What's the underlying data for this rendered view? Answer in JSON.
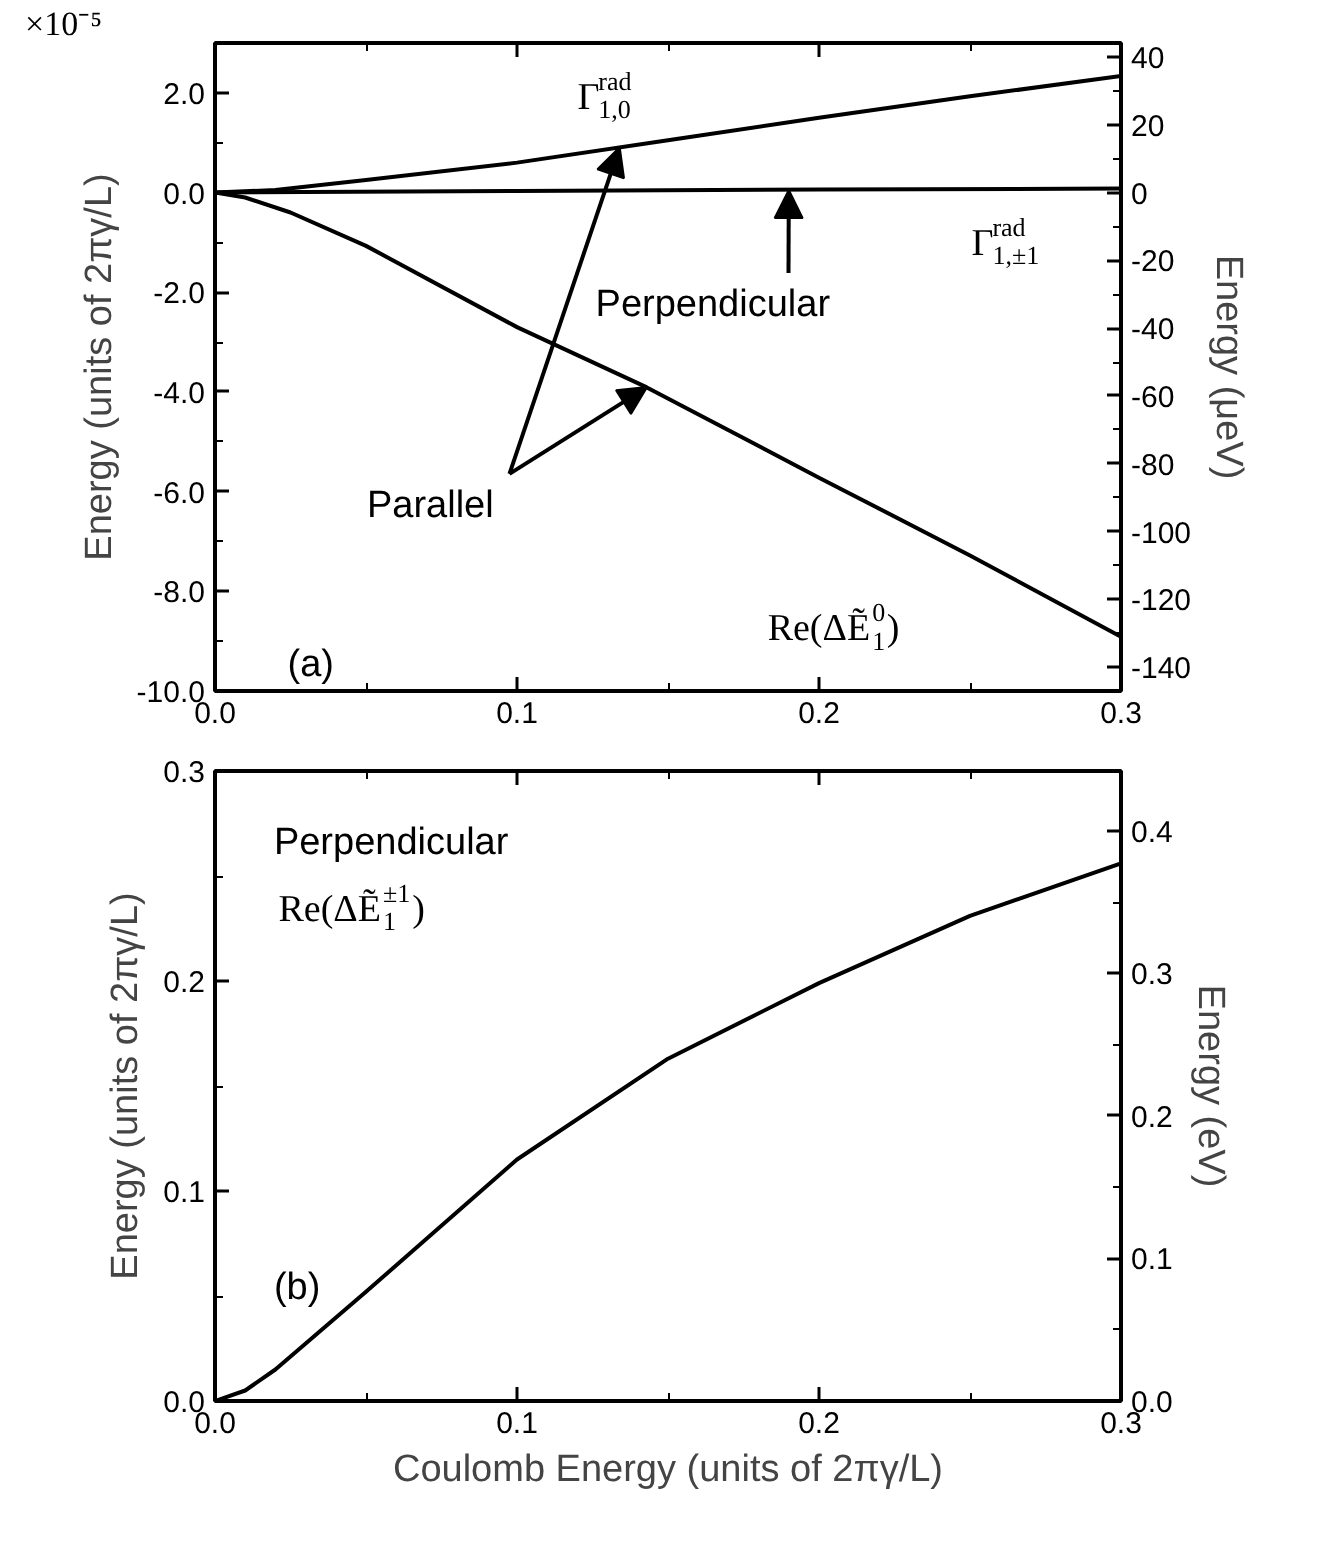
{
  "chart_data": [
    {
      "type": "line",
      "xlim": [
        0,
        0.3
      ],
      "ylim": [
        -10,
        3
      ],
      "y2lim": [
        -147,
        44.1
      ],
      "xticks": [
        {
          "value": 0,
          "label": "0.0"
        },
        {
          "value": 0.05,
          "label": null
        },
        0.1,
        {
          "value": 0.15,
          "label": null
        },
        0.2,
        {
          "value": 0.25,
          "label": null
        },
        0.3
      ],
      "yticks": [
        {
          "value": -10,
          "label": "-10.0"
        },
        {
          "value": -9,
          "label": null
        },
        {
          "value": -8,
          "label": "-8.0"
        },
        {
          "value": -7,
          "label": null
        },
        {
          "value": -6,
          "label": "-6.0"
        },
        {
          "value": -5,
          "label": null
        },
        {
          "value": -4,
          "label": "-4.0"
        },
        {
          "value": -3,
          "label": null
        },
        {
          "value": -2,
          "label": "-2.0"
        },
        {
          "value": -1,
          "label": null
        },
        {
          "value": 0,
          "label": "0.0"
        },
        {
          "value": 1,
          "label": null
        },
        {
          "value": 2,
          "label": "2.0"
        }
      ],
      "y2ticks": [
        -140,
        {
          "value": -130,
          "label": null
        },
        -120,
        {
          "value": -110,
          "label": null
        },
        -100,
        {
          "value": -90,
          "label": null
        },
        -80,
        {
          "value": -70,
          "label": null
        },
        -60,
        {
          "value": -50,
          "label": null
        },
        -40,
        {
          "value": -30,
          "label": null
        },
        -20,
        {
          "value": -10,
          "label": null
        },
        0,
        {
          "value": 10,
          "label": null
        },
        20,
        {
          "value": 30,
          "label": null
        },
        40
      ],
      "ylabel": "Energy (units of 2πγ/L)",
      "y2label": "Energy (μeV)",
      "series": [
        {
          "name": "Γ$^{rad}$$_{1,0}$",
          "color": "#000000",
          "x": [
            0,
            0.02,
            0.05,
            0.1,
            0.15,
            0.2,
            0.25,
            0.3
          ],
          "values": [
            0,
            0.05,
            0.25,
            0.6,
            1.05,
            1.5,
            1.93,
            2.34
          ]
        },
        {
          "name": "Γ$^{rad}$$_{1,±1}$",
          "color": "#000000",
          "x": [
            0,
            0.1,
            0.2,
            0.3
          ],
          "values": [
            0,
            0.03,
            0.06,
            0.08
          ]
        },
        {
          "name": "Re(ΔẼ$^{0}$$_{1}$)",
          "color": "#000000",
          "x": [
            0,
            0.01,
            0.025,
            0.05,
            0.1,
            0.143,
            0.2,
            0.25,
            0.3
          ],
          "values": [
            0,
            -0.1,
            -0.4,
            -1.07,
            -2.7,
            -3.91,
            -5.72,
            -7.28,
            -8.91
          ]
        }
      ],
      "annotations": [
        "×10⁻⁵",
        {
          "text": "Parallel",
          "x": 0.134,
          "y": 0.91
        },
        {
          "text": "Perpendicular",
          "x": 0.19,
          "y": 0.05
        },
        "(a)"
      ]
    },
    {
      "type": "line",
      "xlim": [
        0,
        0.3
      ],
      "ylim": [
        0,
        0.3
      ],
      "y2lim": [
        0,
        0.442
      ],
      "xticks": [
        {
          "value": 0,
          "label": "0.0"
        },
        {
          "value": 0.05,
          "label": null
        },
        0.1,
        {
          "value": 0.15,
          "label": null
        },
        0.2,
        {
          "value": 0.25,
          "label": null
        },
        0.3
      ],
      "yticks": [
        {
          "value": 0,
          "label": "0.0"
        },
        {
          "value": 0.05,
          "label": null
        },
        0.1,
        {
          "value": 0.15,
          "label": null
        },
        0.2,
        {
          "value": 0.25,
          "label": null
        },
        0.3
      ],
      "y2ticks": [
        {
          "value": 0,
          "label": "0.0"
        },
        {
          "value": 0.05,
          "label": null
        },
        0.1,
        {
          "value": 0.15,
          "label": null
        },
        0.2,
        {
          "value": 0.25,
          "label": null
        },
        0.3,
        {
          "value": 0.35,
          "label": null
        },
        0.4
      ],
      "xlabel": "Coulomb Energy (units of 2πγ/L)",
      "ylabel": "Energy (units of 2πγ/L)",
      "y2label": "Energy (eV)",
      "series": [
        {
          "name": "Re(ΔẼ$^{±1}$$_{1}$)",
          "color": "#000000",
          "x": [
            0,
            0.01,
            0.02,
            0.05,
            0.1,
            0.15,
            0.2,
            0.25,
            0.3
          ],
          "values": [
            0,
            0.005,
            0.015,
            0.052,
            0.115,
            0.163,
            0.199,
            0.231,
            0.256
          ]
        }
      ],
      "annotations": [
        "Perpendicular",
        "(b)"
      ]
    }
  ]
}
